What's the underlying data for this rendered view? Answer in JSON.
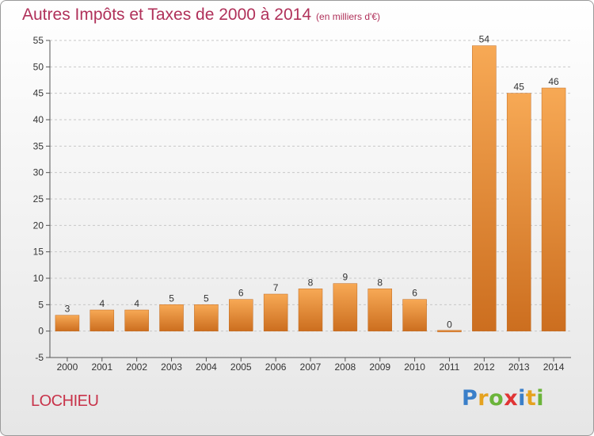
{
  "header": {
    "title": "Autres Impôts et Taxes de 2000 à 2014",
    "unit": "(en milliers d'€)"
  },
  "footer": {
    "commune": "LOCHIEU",
    "logo_text": "Proxiti"
  },
  "colors": {
    "bar_light": "#f7a955",
    "bar_dark": "#cc6e1f",
    "title": "#b0315a",
    "grid": "#c8c8c8"
  },
  "chart_data": {
    "type": "bar",
    "title": "Autres Impôts et Taxes de 2000 à 2014",
    "subtitle": "(en milliers d'€)",
    "categories": [
      "2000",
      "2001",
      "2002",
      "2003",
      "2004",
      "2005",
      "2006",
      "2007",
      "2008",
      "2009",
      "2010",
      "2011",
      "2012",
      "2013",
      "2014"
    ],
    "values": [
      3,
      4,
      4,
      5,
      5,
      6,
      7,
      8,
      9,
      8,
      6,
      0,
      54,
      45,
      46
    ],
    "value_labels": [
      "3",
      "4",
      "4",
      "5",
      "5",
      "6",
      "7",
      "8",
      "9",
      "8",
      "6",
      "0",
      "54",
      "45",
      "46"
    ],
    "ylim": [
      -5,
      55
    ],
    "yticks": [
      -5,
      0,
      5,
      10,
      15,
      20,
      25,
      30,
      35,
      40,
      45,
      50,
      55
    ],
    "ytick_labels": [
      "-5",
      "0",
      "5",
      "10",
      "15",
      "20",
      "25",
      "30",
      "35",
      "40",
      "45",
      "50",
      "55"
    ],
    "grid": true,
    "legend": "none"
  }
}
